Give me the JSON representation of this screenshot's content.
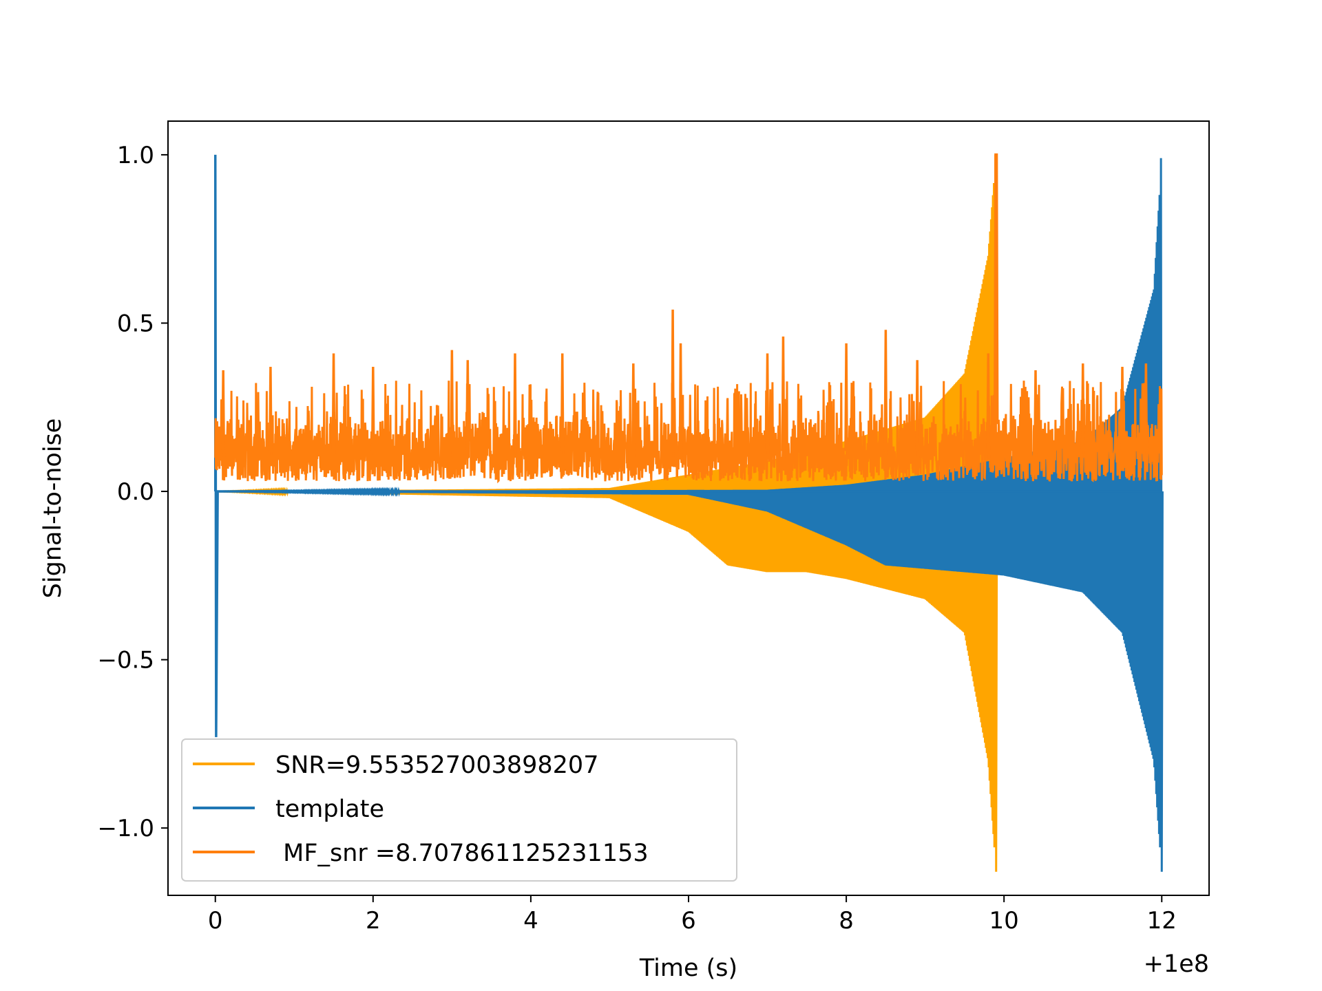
{
  "chart_data": {
    "type": "line",
    "xlabel": "Time (s)",
    "ylabel": "Signal-to-noise",
    "x_offset_label": "+1e8",
    "xlim": [
      -0.6,
      12.6
    ],
    "ylim": [
      -1.2,
      1.1
    ],
    "x_ticks": [
      0,
      2,
      4,
      6,
      8,
      10,
      12
    ],
    "x_tick_labels": [
      "0",
      "2",
      "4",
      "6",
      "8",
      "10",
      "12"
    ],
    "y_ticks": [
      -1.0,
      -0.5,
      0.0,
      0.5,
      1.0
    ],
    "y_tick_labels": [
      "−1.0",
      "−0.5",
      "0.0",
      "0.5",
      "1.0"
    ],
    "grid": false,
    "legend_position": "lower-left",
    "series": [
      {
        "name": "SNR=9.553527003898207",
        "color": "#ffa500",
        "kind": "chirp",
        "start": 0.0,
        "merger_time": 9.9,
        "peak": 1.0,
        "trough": -1.13,
        "envelope_upper": [
          [
            5.0,
            0.01
          ],
          [
            6.0,
            0.05
          ],
          [
            7.0,
            0.09
          ],
          [
            8.0,
            0.15
          ],
          [
            9.0,
            0.22
          ],
          [
            9.5,
            0.35
          ],
          [
            9.8,
            0.7
          ],
          [
            9.9,
            1.0
          ]
        ],
        "envelope_lower": [
          [
            5.0,
            -0.02
          ],
          [
            6.0,
            -0.12
          ],
          [
            6.5,
            -0.22
          ],
          [
            7.0,
            -0.24
          ],
          [
            7.5,
            -0.24
          ],
          [
            8.0,
            -0.26
          ],
          [
            9.0,
            -0.32
          ],
          [
            9.5,
            -0.42
          ],
          [
            9.8,
            -0.8
          ],
          [
            9.9,
            -1.13
          ]
        ]
      },
      {
        "name": "template",
        "color": "#1f77b4",
        "kind": "chirp",
        "start": 0.0,
        "merger_time": 12.0,
        "peak": 0.99,
        "trough": -1.13,
        "initial_spike": [
          1.0,
          -0.73
        ],
        "envelope_upper": [
          [
            7.0,
            0.005
          ],
          [
            8.0,
            0.02
          ],
          [
            9.0,
            0.05
          ],
          [
            10.0,
            0.1
          ],
          [
            11.0,
            0.15
          ],
          [
            11.5,
            0.25
          ],
          [
            11.9,
            0.6
          ],
          [
            12.0,
            0.99
          ]
        ],
        "envelope_lower": [
          [
            6.0,
            -0.01
          ],
          [
            7.0,
            -0.06
          ],
          [
            8.0,
            -0.16
          ],
          [
            8.5,
            -0.22
          ],
          [
            9.0,
            -0.23
          ],
          [
            10.0,
            -0.25
          ],
          [
            11.0,
            -0.3
          ],
          [
            11.5,
            -0.42
          ],
          [
            11.9,
            -0.8
          ],
          [
            12.0,
            -1.13
          ]
        ]
      },
      {
        "name": " MF_snr =8.707861125231153",
        "color": "#ff7f0e",
        "kind": "noise",
        "x_range": [
          0.0,
          12.0
        ],
        "baseline_low": 0.03,
        "baseline_high": 0.25,
        "peaks": [
          [
            0.1,
            0.36
          ],
          [
            0.7,
            0.37
          ],
          [
            1.5,
            0.41
          ],
          [
            2.0,
            0.37
          ],
          [
            3.0,
            0.42
          ],
          [
            3.2,
            0.39
          ],
          [
            3.8,
            0.41
          ],
          [
            4.4,
            0.41
          ],
          [
            5.3,
            0.38
          ],
          [
            5.8,
            0.54
          ],
          [
            5.9,
            0.44
          ],
          [
            7.0,
            0.41
          ],
          [
            7.2,
            0.46
          ],
          [
            8.0,
            0.44
          ],
          [
            8.5,
            0.48
          ],
          [
            8.9,
            0.39
          ],
          [
            9.8,
            0.41
          ],
          [
            10.4,
            0.36
          ],
          [
            11.0,
            0.38
          ],
          [
            11.5,
            0.37
          ],
          [
            11.8,
            0.38
          ]
        ],
        "spike": [
          9.9,
          1.0
        ]
      }
    ]
  }
}
